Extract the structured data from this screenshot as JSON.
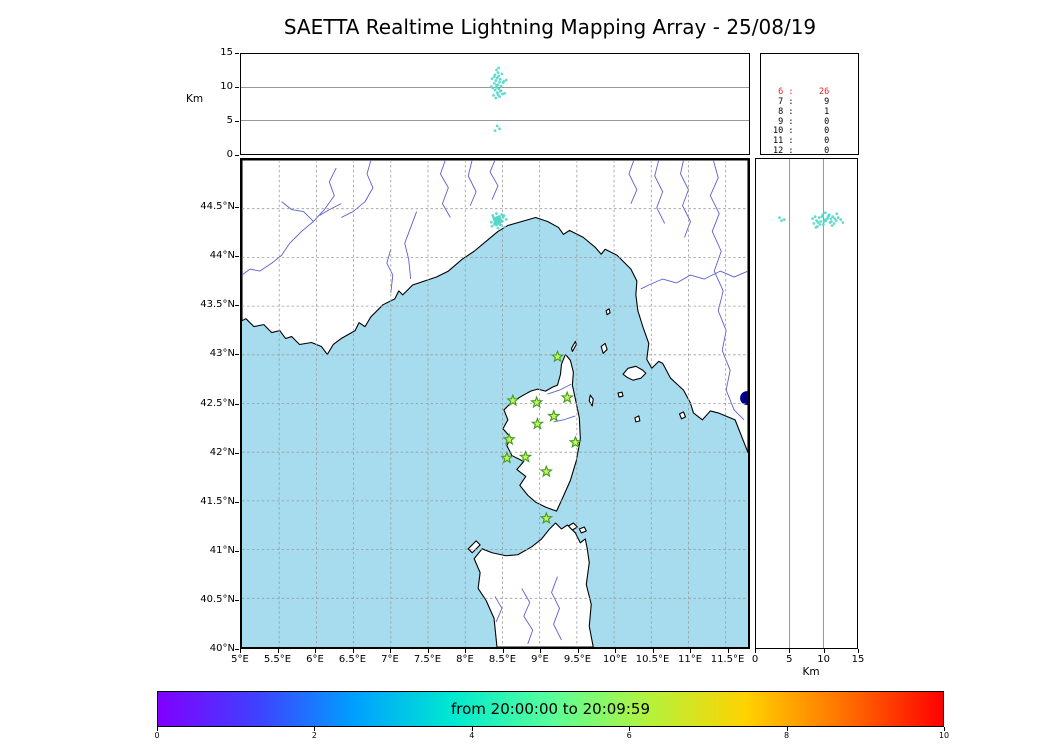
{
  "title": "SAETTA Realtime Lightning Mapping Array - 25/08/19",
  "palette": {
    "sea": "#a6dcee",
    "land": "#ffffff",
    "coastline": "#000000",
    "river": "#5a5fd0",
    "lake": "#00008b",
    "grid": "#9a9a9a",
    "station": "#3f9b1f",
    "station_fill": "#c9f25e",
    "source": "#4fd8c8",
    "highlight": "#ee2222"
  },
  "axes": {
    "altitude": {
      "label": "Km",
      "min": 0,
      "max": 15,
      "ticks": [
        0,
        5,
        10,
        15
      ],
      "gridlines": [
        5,
        10
      ]
    },
    "map": {
      "lon_min": 5,
      "lon_max": 11.8,
      "lat_min": 40,
      "lat_max": 45,
      "lon_ticks": [
        {
          "v": 5,
          "label": "5°E"
        },
        {
          "v": 5.5,
          "label": "5.5°E"
        },
        {
          "v": 6,
          "label": "6°E"
        },
        {
          "v": 6.5,
          "label": "6.5°E"
        },
        {
          "v": 7,
          "label": "7°E"
        },
        {
          "v": 7.5,
          "label": "7.5°E"
        },
        {
          "v": 8,
          "label": "8°E"
        },
        {
          "v": 8.5,
          "label": "8.5°E"
        },
        {
          "v": 9,
          "label": "9°E"
        },
        {
          "v": 9.5,
          "label": "9.5°E"
        },
        {
          "v": 10,
          "label": "10°E"
        },
        {
          "v": 10.5,
          "label": "10.5°E"
        },
        {
          "v": 11,
          "label": "11°E"
        },
        {
          "v": 11.5,
          "label": "11.5°E"
        }
      ],
      "lat_ticks": [
        {
          "v": 44.5,
          "label": "44.5°N"
        },
        {
          "v": 44,
          "label": "44°N"
        },
        {
          "v": 43.5,
          "label": "43.5°N"
        },
        {
          "v": 43,
          "label": "43°N"
        },
        {
          "v": 42.5,
          "label": "42.5°N"
        },
        {
          "v": 42,
          "label": "42°N"
        },
        {
          "v": 41.5,
          "label": "41.5°N"
        },
        {
          "v": 41,
          "label": "41°N"
        },
        {
          "v": 40.5,
          "label": "40.5°N"
        },
        {
          "v": 40,
          "label": "40°N"
        }
      ]
    }
  },
  "station_count_table": {
    "rows": [
      {
        "stations": "6",
        "count": "26",
        "highlight": true
      },
      {
        "stations": "7",
        "count": "9",
        "highlight": false
      },
      {
        "stations": "8",
        "count": "1",
        "highlight": false
      },
      {
        "stations": "9",
        "count": "0",
        "highlight": false
      },
      {
        "stations": "10",
        "count": "0",
        "highlight": false
      },
      {
        "stations": "11",
        "count": "0",
        "highlight": false
      },
      {
        "stations": "12",
        "count": "0",
        "highlight": false
      }
    ]
  },
  "colorbar": {
    "label": "from 20:00:00 to 20:09:59",
    "min": 0,
    "max": 10,
    "ticks": [
      0,
      2,
      4,
      6,
      8,
      10
    ],
    "gradient": [
      "#8000ff",
      "#4040ff",
      "#00a0ff",
      "#00e8d0",
      "#58ff9b",
      "#b4f23c",
      "#ffd200",
      "#ff7000",
      "#ff0000"
    ]
  },
  "chart_data": {
    "type": "scatter",
    "title": "SAETTA Realtime Lightning Mapping Array - 25/08/19",
    "time_window": "from 20:00:00 to 20:09:59",
    "panels": [
      {
        "id": "altitude-vs-longitude",
        "position": "top",
        "x": "longitude_deg_E",
        "x_range": [
          5,
          11.8
        ],
        "y": "altitude_km",
        "y_range": [
          0,
          15
        ]
      },
      {
        "id": "latitude-vs-longitude-map",
        "position": "main",
        "x": "longitude_deg_E",
        "x_range": [
          5,
          11.8
        ],
        "y": "latitude_deg_N",
        "y_range": [
          40,
          45
        ]
      },
      {
        "id": "latitude-vs-altitude",
        "position": "right",
        "x": "altitude_km",
        "x_range": [
          0,
          15
        ],
        "y": "latitude_deg_N",
        "y_range": [
          40,
          45
        ]
      }
    ],
    "stations": [
      {
        "lon": 9.24,
        "lat": 42.98
      },
      {
        "lon": 8.64,
        "lat": 42.53
      },
      {
        "lon": 8.96,
        "lat": 42.51
      },
      {
        "lon": 9.37,
        "lat": 42.56
      },
      {
        "lon": 9.19,
        "lat": 42.37
      },
      {
        "lon": 8.97,
        "lat": 42.29
      },
      {
        "lon": 8.59,
        "lat": 42.13
      },
      {
        "lon": 9.48,
        "lat": 42.1
      },
      {
        "lon": 8.56,
        "lat": 41.94
      },
      {
        "lon": 8.81,
        "lat": 41.95
      },
      {
        "lon": 9.09,
        "lat": 41.8
      },
      {
        "lon": 9.09,
        "lat": 41.32
      }
    ],
    "sources": [
      {
        "lon": 8.42,
        "lat": 44.38,
        "alt_km": 12.6
      },
      {
        "lon": 8.44,
        "lat": 44.4,
        "alt_km": 12.2
      },
      {
        "lon": 8.4,
        "lat": 44.37,
        "alt_km": 11.9
      },
      {
        "lon": 8.45,
        "lat": 44.39,
        "alt_km": 11.7
      },
      {
        "lon": 8.43,
        "lat": 44.41,
        "alt_km": 11.4
      },
      {
        "lon": 8.47,
        "lat": 44.36,
        "alt_km": 11.2
      },
      {
        "lon": 8.41,
        "lat": 44.35,
        "alt_km": 11.0
      },
      {
        "lon": 8.46,
        "lat": 44.42,
        "alt_km": 10.8
      },
      {
        "lon": 8.39,
        "lat": 44.39,
        "alt_km": 10.6
      },
      {
        "lon": 8.44,
        "lat": 44.37,
        "alt_km": 10.4
      },
      {
        "lon": 8.48,
        "lat": 44.38,
        "alt_km": 10.2
      },
      {
        "lon": 8.42,
        "lat": 44.33,
        "alt_km": 10.0
      },
      {
        "lon": 8.45,
        "lat": 44.41,
        "alt_km": 9.8
      },
      {
        "lon": 8.4,
        "lat": 44.36,
        "alt_km": 9.6
      },
      {
        "lon": 8.47,
        "lat": 44.4,
        "alt_km": 9.4
      },
      {
        "lon": 8.43,
        "lat": 44.35,
        "alt_km": 9.2
      },
      {
        "lon": 8.5,
        "lat": 44.37,
        "alt_km": 9.0
      },
      {
        "lon": 8.38,
        "lat": 44.41,
        "alt_km": 8.8
      },
      {
        "lon": 8.46,
        "lat": 44.34,
        "alt_km": 8.6
      },
      {
        "lon": 8.41,
        "lat": 44.39,
        "alt_km": 8.4
      },
      {
        "lon": 8.52,
        "lat": 44.43,
        "alt_km": 10.9
      },
      {
        "lon": 8.36,
        "lat": 44.32,
        "alt_km": 11.3
      },
      {
        "lon": 8.49,
        "lat": 44.44,
        "alt_km": 12.0
      },
      {
        "lon": 8.37,
        "lat": 44.43,
        "alt_km": 9.9
      },
      {
        "lon": 8.53,
        "lat": 44.31,
        "alt_km": 9.1
      },
      {
        "lon": 8.35,
        "lat": 44.36,
        "alt_km": 10.1
      },
      {
        "lon": 8.44,
        "lat": 44.3,
        "alt_km": 8.9
      },
      {
        "lon": 8.55,
        "lat": 44.39,
        "alt_km": 11.1
      },
      {
        "lon": 8.42,
        "lat": 44.45,
        "alt_km": 10.3
      },
      {
        "lon": 8.48,
        "lat": 44.33,
        "alt_km": 9.5
      },
      {
        "lon": 8.43,
        "lat": 44.38,
        "alt_km": 4.2
      },
      {
        "lon": 8.46,
        "lat": 44.37,
        "alt_km": 3.8
      },
      {
        "lon": 8.4,
        "lat": 44.4,
        "alt_km": 3.5
      },
      {
        "lon": 8.45,
        "lat": 44.35,
        "alt_km": 12.9
      },
      {
        "lon": 8.39,
        "lat": 44.34,
        "alt_km": 11.6
      },
      {
        "lon": 8.51,
        "lat": 44.41,
        "alt_km": 10.7
      }
    ]
  }
}
